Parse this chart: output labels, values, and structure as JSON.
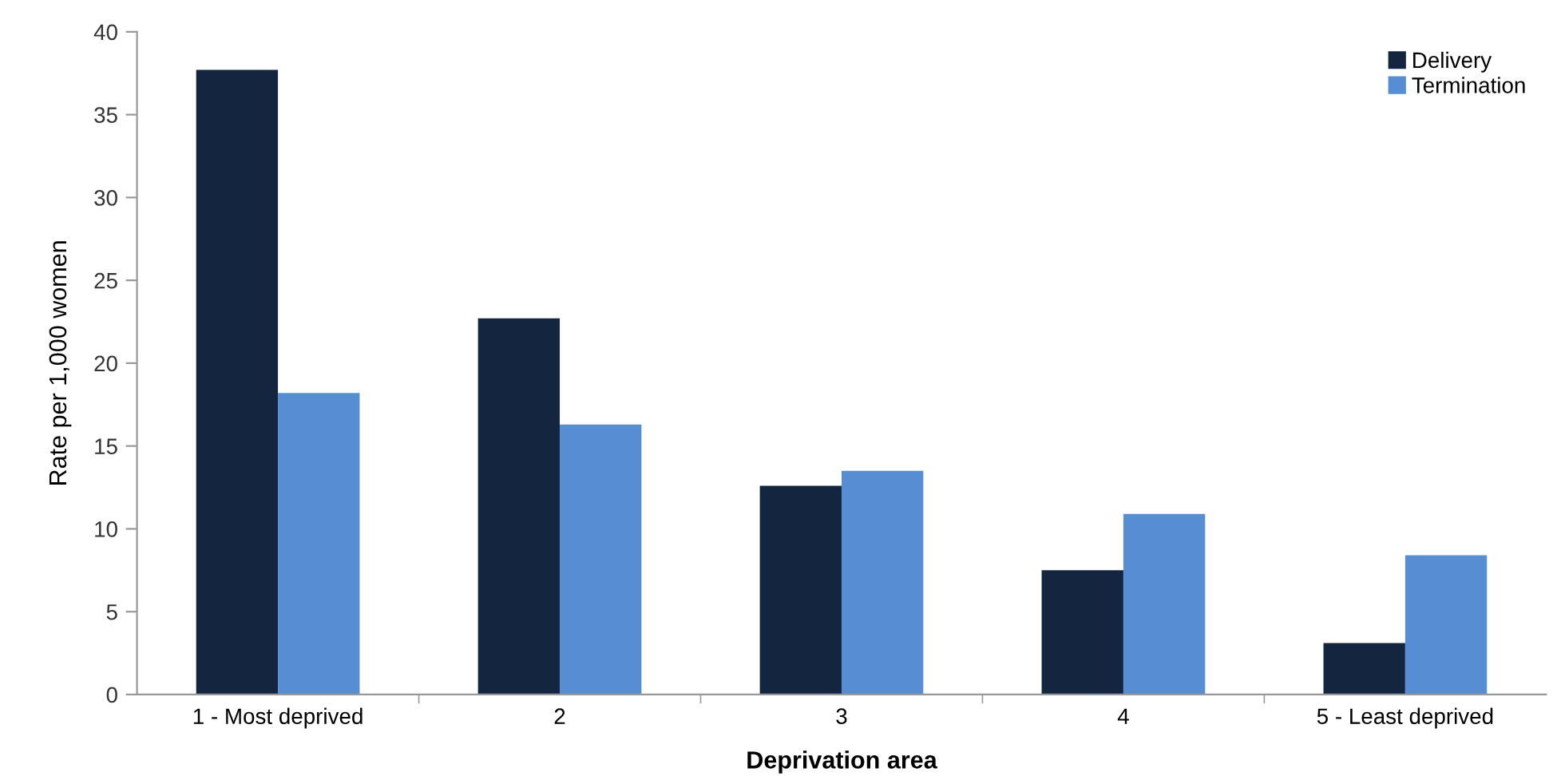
{
  "chart_data": {
    "type": "bar",
    "xlabel": "Deprivation area",
    "ylabel": "Rate per 1,000 women",
    "categories": [
      "1 - Most deprived",
      "2",
      "3",
      "4",
      "5 - Least deprived"
    ],
    "series": [
      {
        "name": "Delivery",
        "color": "#14253f",
        "values": [
          37.7,
          22.7,
          12.6,
          7.5,
          3.1
        ]
      },
      {
        "name": "Termination",
        "color": "#568dd3",
        "values": [
          18.2,
          16.3,
          13.5,
          10.9,
          8.4
        ]
      }
    ],
    "ylim": [
      0,
      40
    ],
    "yticks": [
      0,
      5,
      10,
      15,
      20,
      25,
      30,
      35,
      40
    ],
    "grid": false,
    "legend": "top right"
  }
}
